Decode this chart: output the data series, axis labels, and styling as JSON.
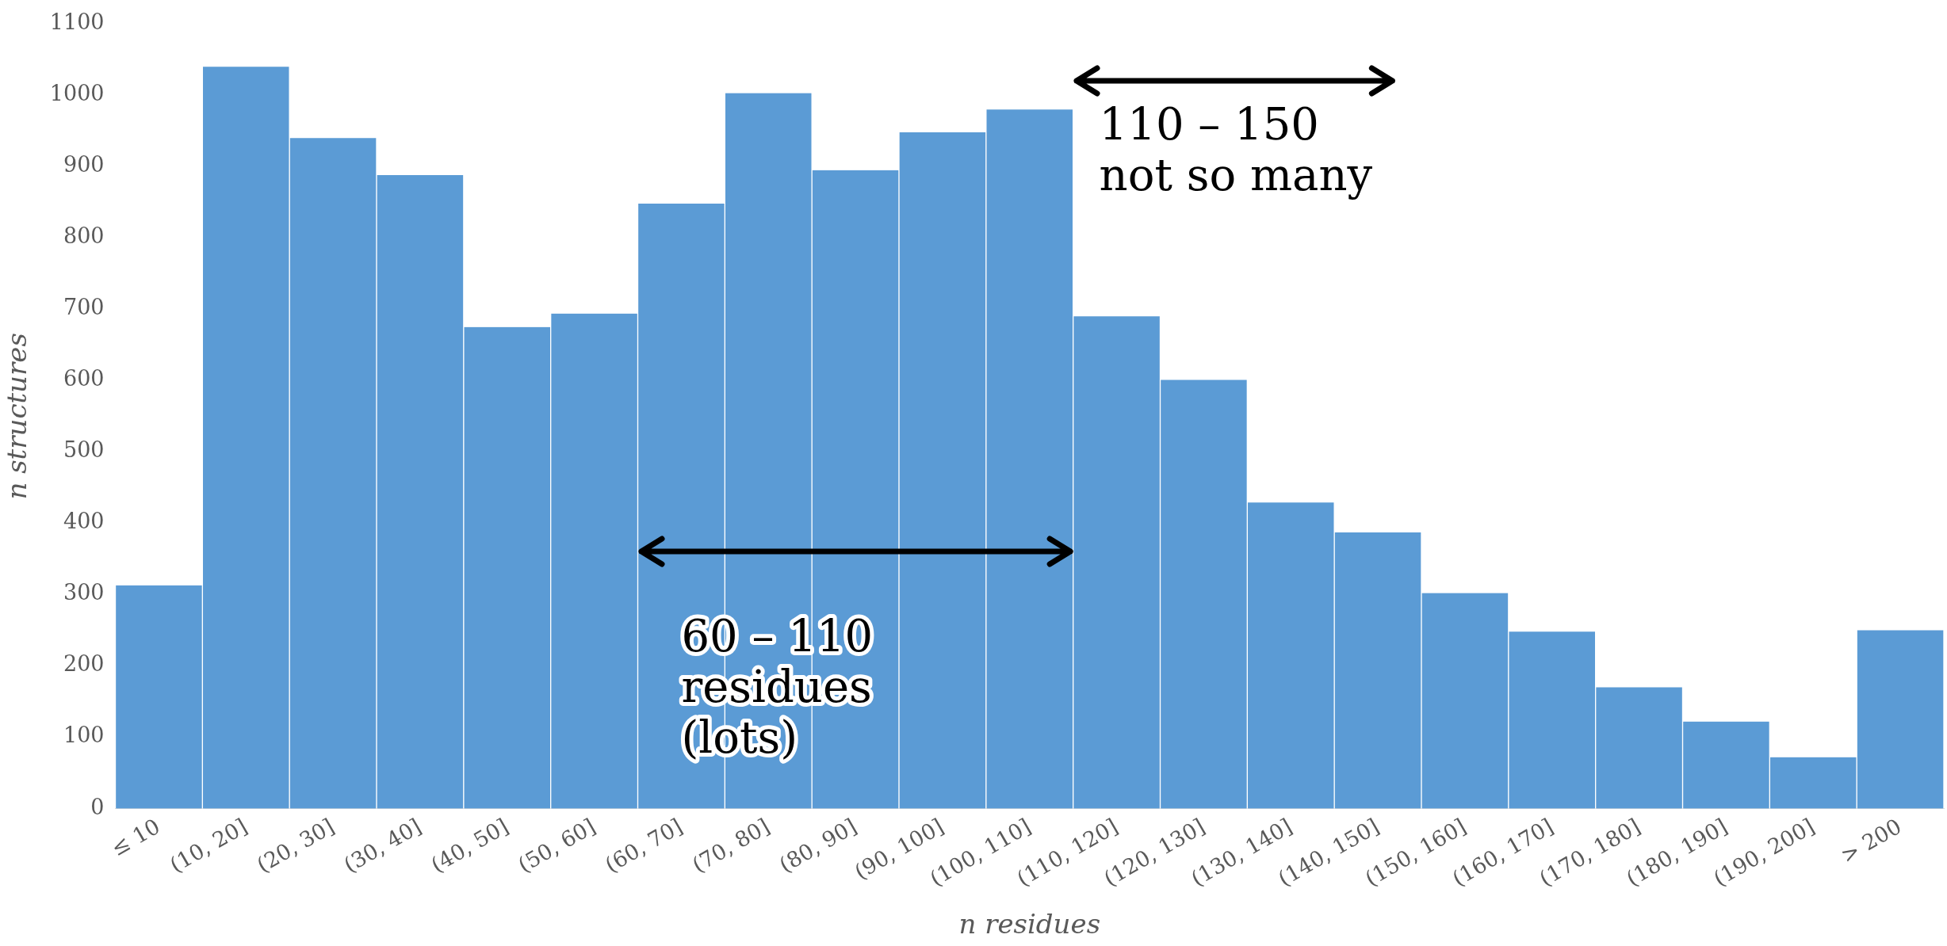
{
  "chart_data": {
    "type": "bar",
    "xlabel": "n residues",
    "ylabel": "n structures",
    "categories": [
      "≤ 10",
      "(10, 20]",
      "(20, 30]",
      "(30, 40]",
      "(40, 50]",
      "(50, 60]",
      "(60, 70]",
      "(70, 80]",
      "(80, 90]",
      "(90, 100]",
      "(100, 110]",
      "(110, 120]",
      "(120, 130]",
      "(130, 140]",
      "(140, 150]",
      "(150, 160]",
      "(160, 170]",
      "(170, 180]",
      "(180, 190]",
      "(190, 200]",
      "> 200"
    ],
    "values": [
      313,
      1040,
      940,
      888,
      675,
      694,
      848,
      1003,
      895,
      948,
      980,
      690,
      601,
      429,
      387,
      302,
      248,
      170,
      122,
      72,
      250
    ],
    "color": "#5b9bd5",
    "ylim": [
      0,
      1100
    ],
    "yticks": [
      0,
      100,
      200,
      300,
      400,
      500,
      600,
      700,
      800,
      900,
      1000,
      1100
    ],
    "grid": false,
    "legend": false,
    "annotations": [
      "60 – 110\nresidues\n(lots)",
      "110 – 150\nnot so many"
    ]
  }
}
